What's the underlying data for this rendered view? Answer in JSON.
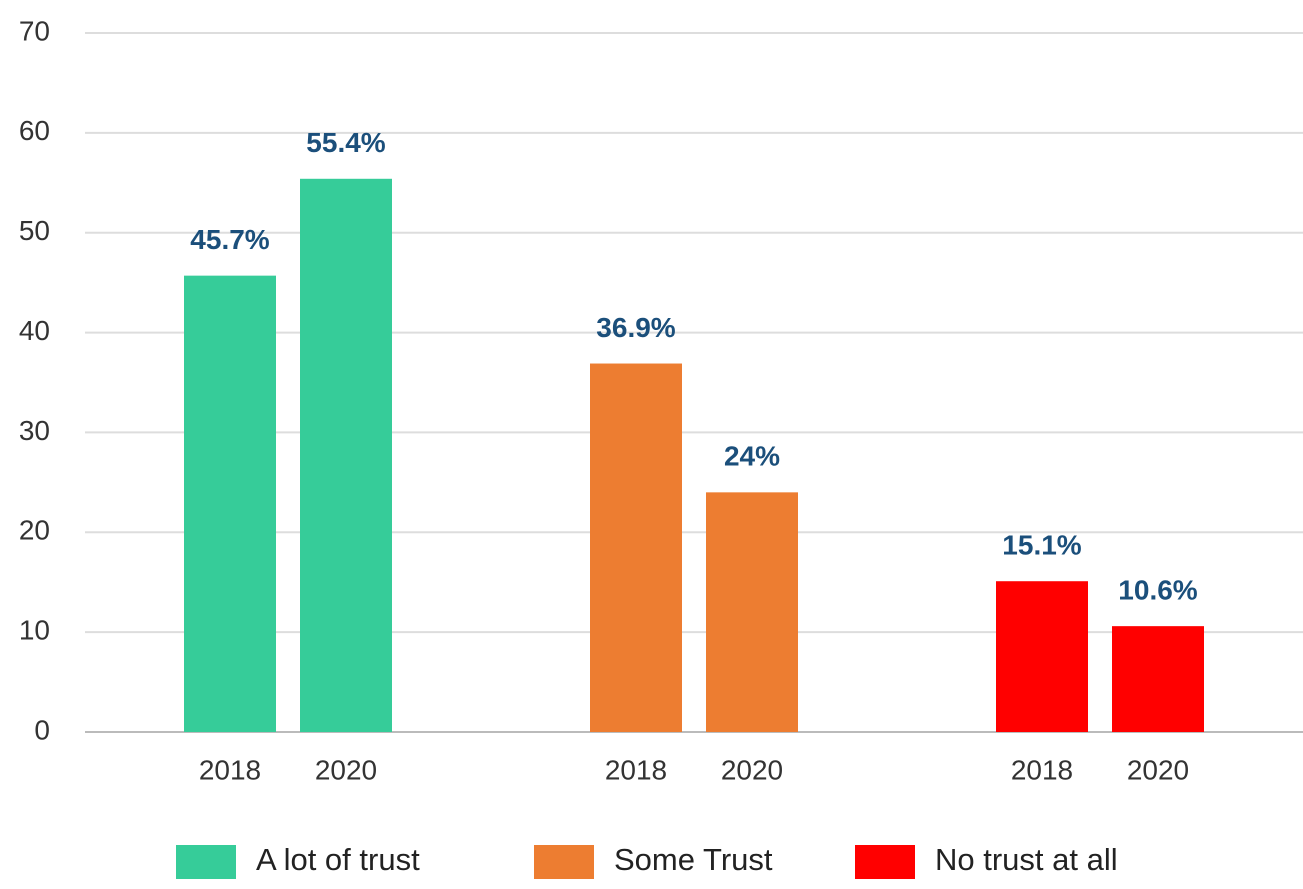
{
  "chart_data": {
    "type": "bar",
    "categories": [
      "2018",
      "2020"
    ],
    "series": [
      {
        "name": "A lot of trust",
        "color": "#36cc99",
        "values": [
          45.7,
          55.4
        ],
        "value_labels": [
          "45.7%",
          "55.4%"
        ]
      },
      {
        "name": "Some Trust",
        "color": "#ed7d31",
        "values": [
          36.9,
          24
        ],
        "value_labels": [
          "36.9%",
          "24%"
        ]
      },
      {
        "name": "No trust at all",
        "color": "#ff0000",
        "values": [
          15.1,
          10.6
        ],
        "value_labels": [
          "15.1%",
          "10.6%"
        ]
      }
    ],
    "ylim": [
      0,
      70
    ],
    "yticks": [
      0,
      10,
      20,
      30,
      40,
      50,
      60,
      70
    ],
    "grid": true,
    "legend": "bottom"
  }
}
